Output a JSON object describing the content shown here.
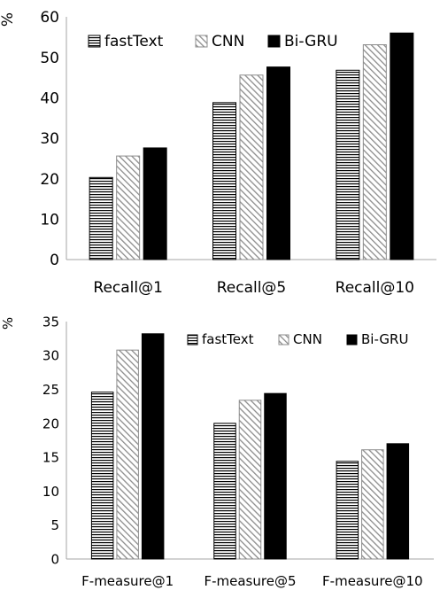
{
  "chart_data": [
    {
      "type": "bar",
      "ylabel": "%",
      "ylim": [
        0,
        60
      ],
      "ytick_step": 10,
      "categories": [
        "Recall@1",
        "Recall@5",
        "Recall@10"
      ],
      "series": [
        {
          "name": "fastText",
          "values": [
            20.3,
            38.8,
            46.8
          ]
        },
        {
          "name": "CNN",
          "values": [
            25.6,
            45.6,
            53.1
          ]
        },
        {
          "name": "Bi-GRU",
          "values": [
            27.6,
            47.6,
            56.0
          ]
        }
      ],
      "legend": "top-left",
      "grid": false
    },
    {
      "type": "bar",
      "ylabel": "%",
      "ylim": [
        0,
        35
      ],
      "ytick_step": 5,
      "categories": [
        "F-measure@1",
        "F-measure@5",
        "F-measure@10"
      ],
      "series": [
        {
          "name": "fastText",
          "values": [
            24.6,
            20.0,
            14.4
          ]
        },
        {
          "name": "CNN",
          "values": [
            30.8,
            23.4,
            16.1
          ]
        },
        {
          "name": "Bi-GRU",
          "values": [
            33.2,
            24.4,
            17.0
          ]
        }
      ],
      "legend": "top-right",
      "grid": false
    }
  ],
  "colors": {
    "fastText": "#000000",
    "CNN": "#8c8c8c",
    "Bi-GRU": "#000000",
    "axis": "#a6a6a6"
  }
}
